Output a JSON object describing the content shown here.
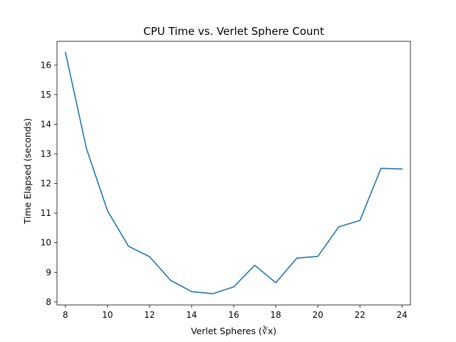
{
  "chart_data": {
    "type": "line",
    "title": "CPU Time vs. Verlet Sphere Count",
    "xlabel": "Verlet Spheres (∛x)",
    "ylabel": "Time Elapsed (seconds)",
    "xlim": [
      7.6,
      24.4
    ],
    "ylim": [
      7.9,
      16.8
    ],
    "xticks": [
      8,
      10,
      12,
      14,
      16,
      18,
      20,
      22,
      24
    ],
    "yticks": [
      8,
      9,
      10,
      11,
      12,
      13,
      14,
      15,
      16
    ],
    "grid": false,
    "series": [
      {
        "color": "#1f77b4",
        "x": [
          8,
          9,
          10,
          11,
          12,
          13,
          14,
          15,
          16,
          17,
          18,
          19,
          20,
          21,
          22,
          23,
          24
        ],
        "y": [
          16.43,
          13.18,
          11.08,
          9.88,
          9.53,
          8.73,
          8.35,
          8.28,
          8.51,
          9.24,
          8.65,
          9.48,
          9.54,
          10.54,
          10.75,
          12.51,
          12.49
        ]
      }
    ]
  }
}
